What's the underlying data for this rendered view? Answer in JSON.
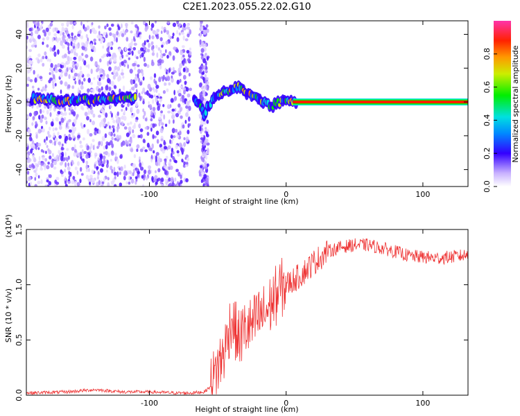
{
  "title": "C2E1.2023.055.22.02.G10",
  "chart_data": [
    {
      "type": "heatmap",
      "xlabel": "Height of straight line (km)",
      "ylabel": "Frequency (Hz)",
      "xlim": [
        -190,
        133
      ],
      "ylim": [
        -50,
        48
      ],
      "x_ticks": [
        -100,
        0,
        100
      ],
      "y_ticks": [
        -40,
        -20,
        0,
        20,
        40
      ],
      "colorbar": {
        "label": "Normalized spectral amplitude",
        "range": [
          0,
          1
        ],
        "ticks": [
          "0.0",
          "0.2",
          "0.4",
          "0.6",
          "0.8"
        ]
      },
      "ridge": [
        {
          "x": -185,
          "y": 2
        },
        {
          "x": -170,
          "y": 1
        },
        {
          "x": -150,
          "y": 1
        },
        {
          "x": -130,
          "y": 2
        },
        {
          "x": -112,
          "y": 2
        },
        {
          "x": -65,
          "y": 1
        },
        {
          "x": -60,
          "y": -7
        },
        {
          "x": -52,
          "y": 4
        },
        {
          "x": -42,
          "y": 6
        },
        {
          "x": -35,
          "y": 9
        },
        {
          "x": -20,
          "y": 1
        },
        {
          "x": -10,
          "y": -2
        },
        {
          "x": 0,
          "y": 1
        },
        {
          "x": 5,
          "y": 0
        },
        {
          "x": 133,
          "y": 0
        }
      ],
      "noise_region_x": [
        -190,
        -70
      ]
    },
    {
      "type": "line",
      "xlabel": "Height of straight line (km)",
      "ylabel": "SNR (10 * v/v)",
      "y_multiplier": "(x10⁴)",
      "xlim": [
        -190,
        133
      ],
      "ylim": [
        0,
        1.5
      ],
      "x_ticks": [
        -100,
        0,
        100
      ],
      "y_ticks": [
        "0.0",
        "0.5",
        "1.0",
        "1.5"
      ],
      "line_color": "#ee3333",
      "series": [
        {
          "x": [
            -190,
            -160,
            -140,
            -120,
            -100,
            -80,
            -70,
            -60,
            -55,
            -50,
            -45,
            -40,
            -35,
            -30,
            -25,
            -20,
            -15,
            -10,
            -5,
            0,
            10,
            20,
            30,
            40,
            50,
            60,
            70,
            80,
            90,
            100,
            110,
            120,
            133
          ],
          "y": [
            0.02,
            0.03,
            0.05,
            0.03,
            0.03,
            0.02,
            0.02,
            0.03,
            0.08,
            0.25,
            0.4,
            0.7,
            0.5,
            0.6,
            0.62,
            0.7,
            0.75,
            0.85,
            0.95,
            1.0,
            1.08,
            1.2,
            1.3,
            1.34,
            1.36,
            1.36,
            1.33,
            1.3,
            1.26,
            1.25,
            1.24,
            1.25,
            1.27
          ]
        }
      ]
    }
  ]
}
